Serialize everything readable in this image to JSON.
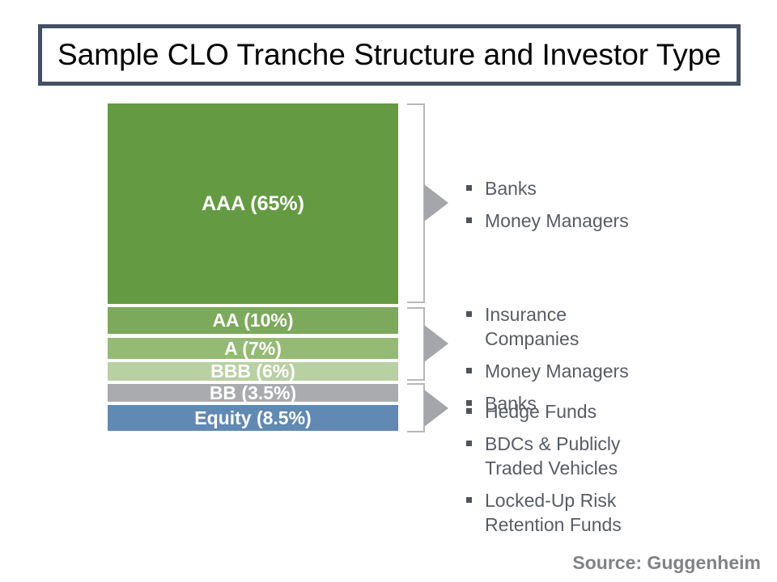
{
  "slide": {
    "title": "Sample CLO Tranche Structure and Investor Type",
    "source": "Source: Guggenheim"
  },
  "chart_data": {
    "type": "bar",
    "note": "single stacked column of CLO tranches, top (senior) to bottom (equity)",
    "categories": [
      "AAA",
      "AA",
      "A",
      "BBB",
      "BB",
      "Equity"
    ],
    "values": [
      65,
      10,
      7,
      6,
      3.5,
      8.5
    ],
    "unit": "percent"
  },
  "tranches": [
    {
      "rating": "AAA",
      "percent": 65,
      "label": "AAA (65%)",
      "color": "#649b42"
    },
    {
      "rating": "AA",
      "percent": 10,
      "label": "AA (10%)",
      "color": "#7ca95b"
    },
    {
      "rating": "A",
      "percent": 7,
      "label": "A (7%)",
      "color": "#95ba74"
    },
    {
      "rating": "BBB",
      "percent": 6,
      "label": "BBB (6%)",
      "color": "#b9d0a3"
    },
    {
      "rating": "BB",
      "percent": 3.5,
      "label": "BB (3.5%)",
      "color": "#a9abae"
    },
    {
      "rating": "Equity",
      "percent": 8.5,
      "label": "Equity (8.5%)",
      "color": "#6089b3"
    }
  ],
  "investor_groups": [
    {
      "tranches_covered": "AAA",
      "items": [
        "Banks",
        "Money Managers"
      ]
    },
    {
      "tranches_covered": "AA / A / BBB",
      "items": [
        "Insurance Companies",
        "Money Managers",
        "Banks"
      ]
    },
    {
      "tranches_covered": "BB / Equity",
      "items": [
        "Hedge Funds",
        "BDCs & Publicly Traded Vehicles",
        "Locked-Up Risk Retention Funds"
      ]
    }
  ],
  "colors": {
    "title_border": "#415064",
    "bracket_line": "#b5b7b9",
    "arrow": "#a4a6a9",
    "list_text": "#585d63",
    "source_text": "#808285"
  }
}
